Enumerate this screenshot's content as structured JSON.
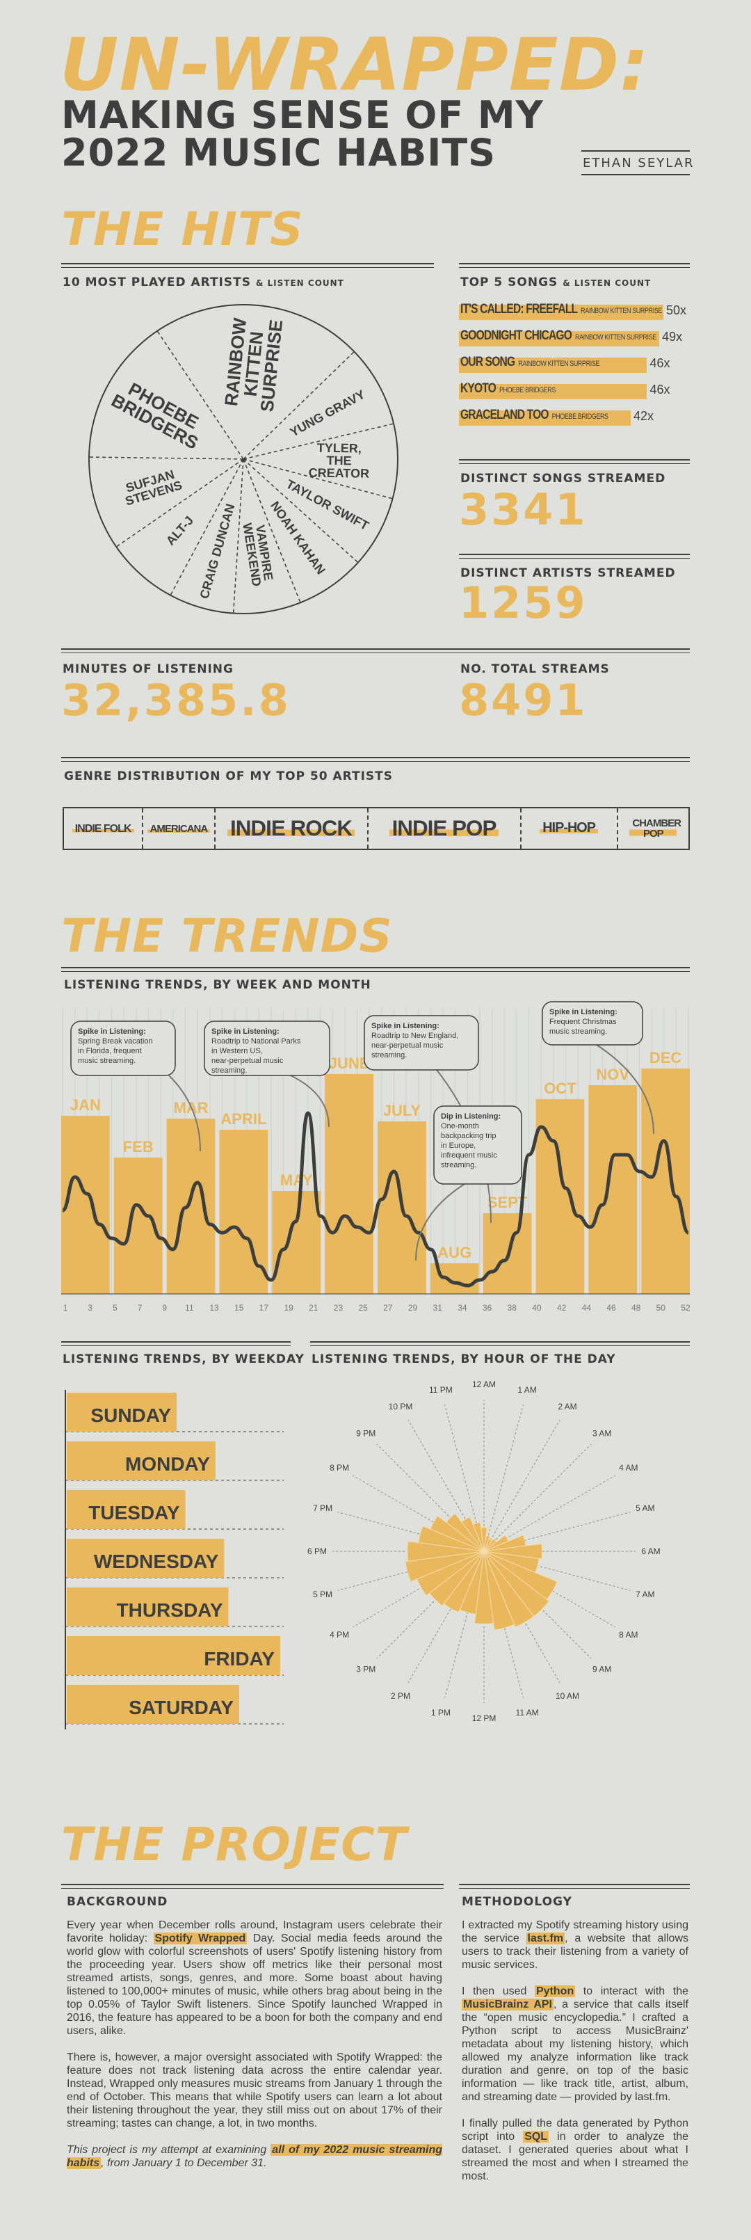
{
  "header": {
    "title": "UN-WRAPPED:",
    "subtitle_line1": "MAKING SENSE OF MY",
    "subtitle_line2": "2022 MUSIC HABITS",
    "author": "ETHAN SEYLAR"
  },
  "hits": {
    "section_title": "THE HITS",
    "artists_title": "10 MOST PLAYED ARTISTS",
    "artists_suffix": "& LISTEN COUNT",
    "songs_title": "TOP 5 SONGS",
    "songs_suffix": "& LISTEN COUNT",
    "distinct_songs_label": "DISTINCT SONGS STREAMED",
    "distinct_songs_value": "3341",
    "distinct_artists_label": "DISTINCT ARTISTS STREAMED",
    "distinct_artists_value": "1259",
    "minutes_label": "MINUTES OF LISTENING",
    "minutes_value": "32,385.8",
    "streams_label": "NO. TOTAL STREAMS",
    "streams_value": "8491",
    "genre_title": "GENRE DISTRIBUTION OF MY TOP 50 ARTISTS",
    "genres": [
      {
        "name": "INDIE FOLK",
        "share": 0.125
      },
      {
        "name": "AMERICANA",
        "share": 0.115
      },
      {
        "name": "INDIE ROCK",
        "share": 0.245
      },
      {
        "name": "INDIE POP",
        "share": 0.245
      },
      {
        "name": "HIP-HOP",
        "share": 0.155
      },
      {
        "name": "CHAMBER POP",
        "share": 0.115
      }
    ]
  },
  "trends": {
    "section_title": "THE TRENDS",
    "weekmonth_title": "LISTENING TRENDS, BY WEEK AND MONTH",
    "weekday_title": "LISTENING TRENDS, BY WEEKDAY",
    "hour_title": "LISTENING TRENDS, BY HOUR OF THE DAY",
    "annotations": [
      {
        "title": "Spike in Listening:",
        "body": "Spring Break vacation in Florida, frequent music streaming."
      },
      {
        "title": "Spike in Listening:",
        "body": "Roadtrip to National Parks in Western US, near-perpetual music streaming."
      },
      {
        "title": "Spike in Listening:",
        "body": "Roadtrip to New England, near-perpetual music streaming."
      },
      {
        "title": "Dip in Listening:",
        "body": "One-month backpacking trip in Europe, infrequent music streaming."
      },
      {
        "title": "Spike in Listening:",
        "body": "Frequent Christmas music streaming."
      }
    ]
  },
  "project": {
    "section_title": "THE PROJECT",
    "background_title": "BACKGROUND",
    "methodology_title": "METHODOLOGY",
    "bg_p1_a": "Every year when December rolls around, Instagram users celebrate their favorite holiday: ",
    "bg_p1_hl": "Spotify Wrapped",
    "bg_p1_b": " Day. Social media feeds around the world glow with colorful screenshots of users' Spotify listening history from the proceeding year. Users show off metrics like their personal most streamed artists, songs, genres, and more. Some boast about having listened to 100,000+ minutes of music, while others brag about being in the top 0.05% of Taylor Swift listeners. Since Spotify launched Wrapped in 2016, the feature has appeared to be a boon for both the company and end users, alike.",
    "bg_p2": "There is, however, a major oversight associated with Spotify Wrapped: the feature does not track listening data across the entire calendar year. Instead, Wrapped only measures music streams from January 1 through the end of October. This means that while Spotify users can learn a lot about their listening throughout the year, they still miss out on about 17% of their streaming; tastes can change, a lot, in two months.",
    "bg_p3_a": "This project is my attempt at examining ",
    "bg_p3_b": "all of my 2022 music streaming habits",
    "bg_p3_c": ", from January 1 to December 31.",
    "m_p1_a": "I extracted my Spotify streaming history using the service ",
    "m_p1_hl": "last.fm",
    "m_p1_b": ", a website that allows users to track their listening from a variety of music services.",
    "m_p2_a": "I then used ",
    "m_p2_hl1": "Python",
    "m_p2_b": " to interact with the ",
    "m_p2_hl2": "MusicBrainz API",
    "m_p2_c": ", a service that calls itself the “open music encyclopedia.” I crafted a Python script to access MusicBrainz' metadata about my listening history, which allowed my analyze information like track duration and genre, on top of the basic information — like track title, artist, album, and streaming date — provided by last.fm.",
    "m_p3_a": "I finally pulled the data generated by Python script into ",
    "m_p3_hl": "SQL",
    "m_p3_b": " in order to analyze the dataset. I generated queries about what I streamed the most and when I streamed the most."
  },
  "colors": {
    "accent": "#eab85c",
    "ink": "#3d3f3e",
    "background": "#dfe1dd"
  },
  "chart_data": [
    {
      "type": "pie",
      "title": "10 MOST PLAYED ARTISTS",
      "categories": [
        "RAINBOW KITTEN SURPRISE",
        "YUNG GRAVY",
        "TYLER, THE CREATOR",
        "TAYLOR SWIFT",
        "NOAH KAHAN",
        "VAMPIRE WEEKEND",
        "CRAIG DUNCAN",
        "ALT-J",
        "SUFJAN STEVENS",
        "PHOEBE BRIDGERS"
      ],
      "values": [
        440,
        170,
        155,
        150,
        145,
        140,
        135,
        150,
        195,
        305
      ]
    },
    {
      "type": "bar",
      "title": "TOP 5 SONGS",
      "categories": [
        "IT'S CALLED: FREEFALL",
        "GOODNIGHT CHICAGO",
        "OUR SONG",
        "KYOTO",
        "GRACELAND TOO"
      ],
      "artists": [
        "RAINBOW KITTEN SURPRISE",
        "RAINBOW KITTEN SURPRISE",
        "RAINBOW KITTEN SURPRISE",
        "PHOEBE BRIDGERS",
        "PHOEBE BRIDGERS"
      ],
      "values": [
        50,
        49,
        46,
        46,
        42
      ],
      "labels": [
        "50x",
        "49x",
        "46x",
        "46x",
        "42x"
      ]
    },
    {
      "type": "bar",
      "title": "LISTENING TRENDS, BY WEEK AND MONTH",
      "categories": [
        "JAN",
        "FEB",
        "MAR",
        "APRIL",
        "MAY",
        "JUNE",
        "JULY",
        "AUG",
        "SEPT",
        "OCT",
        "NOV",
        "DEC"
      ],
      "values": [
        0.64,
        0.49,
        0.63,
        0.59,
        0.37,
        0.79,
        0.62,
        0.11,
        0.29,
        0.7,
        0.75,
        0.81
      ],
      "x_ticks": [
        "1",
        "3",
        "5",
        "7",
        "9",
        "11",
        "13",
        "15",
        "17",
        "19",
        "21",
        "23",
        "25",
        "27",
        "29",
        "31",
        "34",
        "36",
        "38",
        "40",
        "42",
        "44",
        "46",
        "48",
        "50",
        "52"
      ],
      "weekly_line": [
        0.3,
        0.42,
        0.36,
        0.25,
        0.2,
        0.18,
        0.32,
        0.28,
        0.2,
        0.16,
        0.31,
        0.4,
        0.25,
        0.22,
        0.24,
        0.2,
        0.1,
        0.05,
        0.16,
        0.26,
        0.65,
        0.28,
        0.22,
        0.28,
        0.24,
        0.22,
        0.34,
        0.44,
        0.28,
        0.22,
        0.16,
        0.06,
        0.04,
        0.03,
        0.05,
        0.08,
        0.12,
        0.22,
        0.5,
        0.6,
        0.55,
        0.38,
        0.28,
        0.24,
        0.32,
        0.5,
        0.5,
        0.44,
        0.42,
        0.55,
        0.35,
        0.22
      ]
    },
    {
      "type": "bar",
      "title": "LISTENING TRENDS, BY WEEKDAY",
      "categories": [
        "SUNDAY",
        "MONDAY",
        "TUESDAY",
        "WEDNESDAY",
        "THURSDAY",
        "FRIDAY",
        "SATURDAY"
      ],
      "values": [
        0.51,
        0.69,
        0.55,
        0.73,
        0.75,
        0.99,
        0.8
      ]
    },
    {
      "type": "bar",
      "title": "LISTENING TRENDS, BY HOUR OF THE DAY",
      "categories": [
        "12 AM",
        "1 AM",
        "2 AM",
        "3 AM",
        "4 AM",
        "5 AM",
        "6 AM",
        "7 AM",
        "8 AM",
        "9 AM",
        "10 AM",
        "11 AM",
        "12 PM",
        "1 PM",
        "2 PM",
        "3 PM",
        "4 PM",
        "5 PM",
        "6 PM",
        "7 PM",
        "8 PM",
        "9 PM",
        "10 PM",
        "11 PM"
      ],
      "values": [
        0.18,
        0.12,
        0.1,
        0.12,
        0.2,
        0.32,
        0.44,
        0.42,
        0.6,
        0.62,
        0.62,
        0.6,
        0.55,
        0.48,
        0.5,
        0.52,
        0.55,
        0.6,
        0.58,
        0.5,
        0.44,
        0.36,
        0.28,
        0.22
      ]
    }
  ]
}
